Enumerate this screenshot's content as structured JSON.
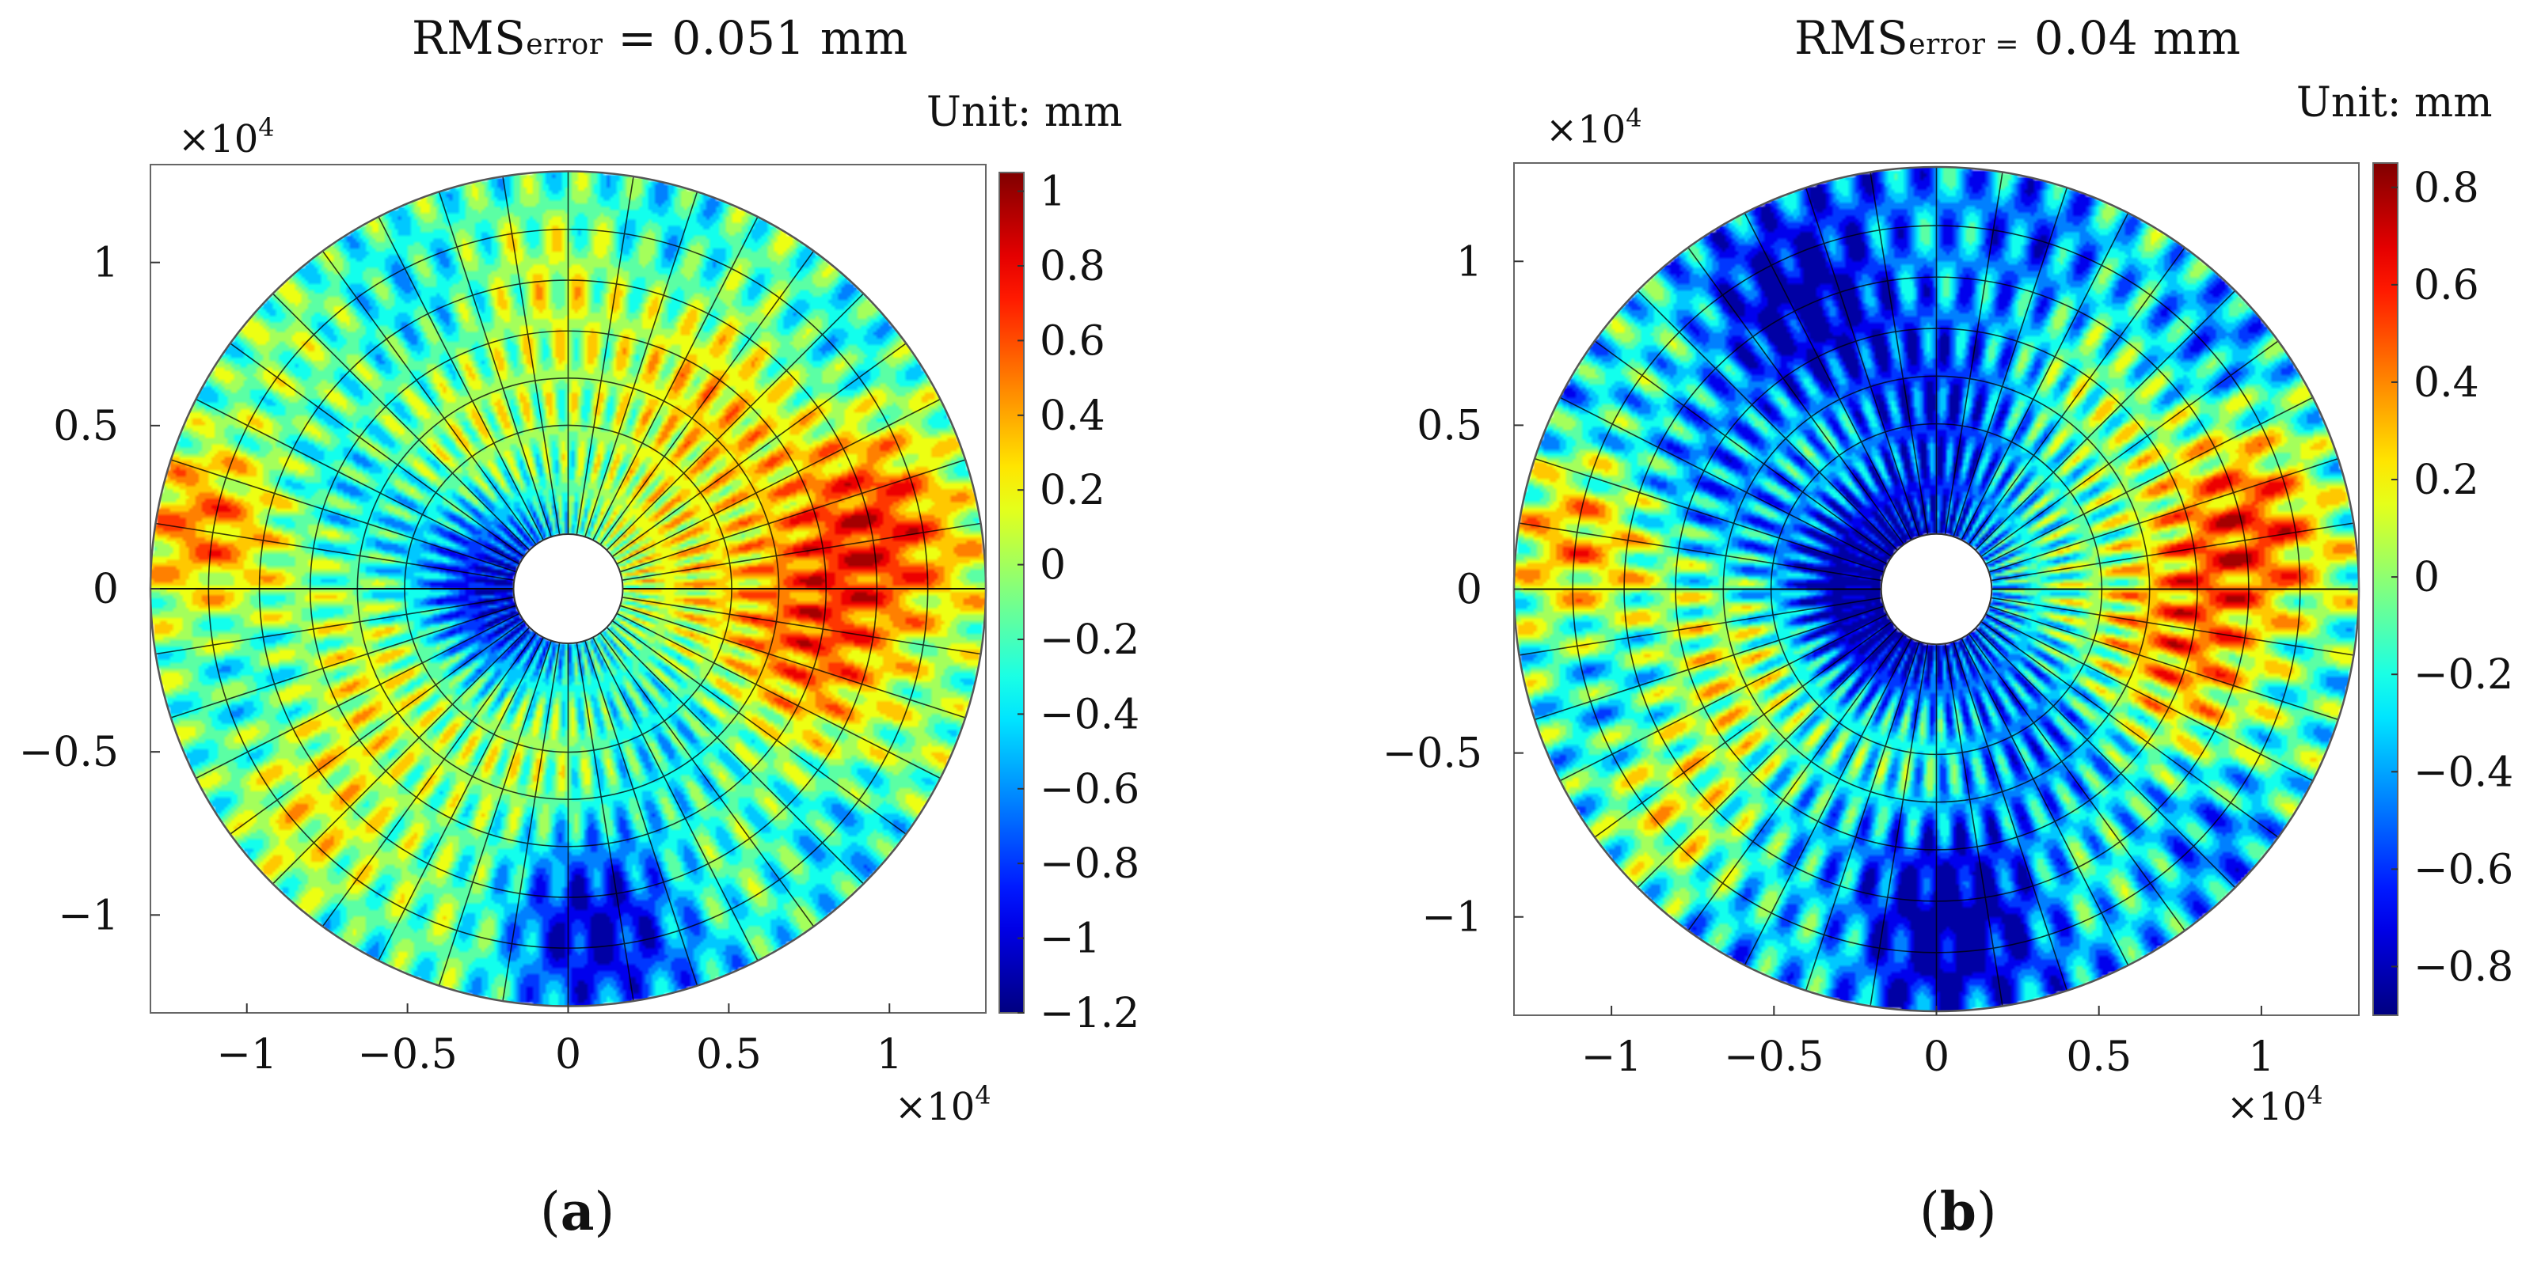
{
  "chart_data": [
    {
      "type": "heatmap",
      "panel_label": "a",
      "title_main": "RMS",
      "title_sub": "error",
      "title_value": "= 0.051 mm",
      "colorbar_label": "Unit: mm",
      "x_scale_label": "×10",
      "y_scale_label": "×10",
      "scale_exponent": "4",
      "xlim": [
        -1.3,
        1.3
      ],
      "ylim": [
        -1.3,
        1.3
      ],
      "x_ticks": [
        -1,
        -0.5,
        0,
        0.5,
        1
      ],
      "x_tick_labels": [
        "−1",
        "−0.5",
        "0",
        "0.5",
        "1"
      ],
      "y_ticks": [
        1,
        0.5,
        0,
        -0.5,
        -1
      ],
      "y_tick_labels": [
        "1",
        "0.5",
        "0",
        "−0.5",
        "−1"
      ],
      "outer_radius": 1.3,
      "inner_radius": 0.17,
      "colorbar_range": [
        -1.2,
        1.05
      ],
      "colorbar_ticks": [
        1,
        0.8,
        0.6,
        0.4,
        0.2,
        0,
        -0.2,
        -0.4,
        -0.6,
        -0.8,
        -1,
        -1.2
      ],
      "colorbar_tick_labels": [
        "1",
        "0.8",
        "0.6",
        "0.4",
        "0.2",
        "0",
        "−0.2",
        "−0.4",
        "−0.6",
        "−0.8",
        "−1",
        "−1.2"
      ],
      "field": {
        "base": -0.25,
        "features": [
          {
            "x": 0.85,
            "y": 0.05,
            "amp": 0.95,
            "sigma": 0.33
          },
          {
            "x": -0.2,
            "y": 0.02,
            "amp": -0.75,
            "sigma": 0.22
          },
          {
            "x": 0.1,
            "y": -1.1,
            "amp": -0.65,
            "sigma": 0.25
          },
          {
            "x": -1.15,
            "y": 0.2,
            "amp": 0.55,
            "sigma": 0.25
          },
          {
            "x": 0.1,
            "y": 0.55,
            "amp": 0.4,
            "sigma": 0.35
          },
          {
            "x": -0.55,
            "y": -0.55,
            "amp": 0.45,
            "sigma": 0.3
          }
        ],
        "ripple_amplitude": 0.35,
        "ring_spokes": 48
      }
    },
    {
      "type": "heatmap",
      "panel_label": "b",
      "title_main": "RMS",
      "title_sub": "error =",
      "title_value": "0.04 mm",
      "colorbar_label": "Unit: mm",
      "x_scale_label": "×10",
      "y_scale_label": "×10",
      "scale_exponent": "4",
      "xlim": [
        -1.3,
        1.3
      ],
      "ylim": [
        -1.3,
        1.3
      ],
      "x_ticks": [
        -1,
        -0.5,
        0,
        0.5,
        1
      ],
      "x_tick_labels": [
        "−1",
        "−0.5",
        "0",
        "0.5",
        "1"
      ],
      "y_ticks": [
        1,
        0.5,
        0,
        -0.5,
        -1
      ],
      "y_tick_labels": [
        "1",
        "0.5",
        "0",
        "−0.5",
        "−1"
      ],
      "outer_radius": 1.3,
      "inner_radius": 0.17,
      "colorbar_range": [
        -0.9,
        0.85
      ],
      "colorbar_ticks": [
        0.8,
        0.6,
        0.4,
        0.2,
        0,
        -0.2,
        -0.4,
        -0.6,
        -0.8
      ],
      "colorbar_tick_labels": [
        "0.8",
        "0.6",
        "0.4",
        "0.2",
        "0",
        "−0.2",
        "−0.4",
        "−0.6",
        "−0.8"
      ],
      "field": {
        "base": -0.3,
        "features": [
          {
            "x": 0.85,
            "y": 0.05,
            "amp": 0.8,
            "sigma": 0.33
          },
          {
            "x": -0.1,
            "y": 0.0,
            "amp": -0.7,
            "sigma": 0.25
          },
          {
            "x": 0.0,
            "y": -1.05,
            "amp": -0.5,
            "sigma": 0.28
          },
          {
            "x": -0.3,
            "y": 0.9,
            "amp": -0.45,
            "sigma": 0.3
          },
          {
            "x": -1.1,
            "y": 0.1,
            "amp": 0.45,
            "sigma": 0.25
          },
          {
            "x": -0.6,
            "y": -0.5,
            "amp": 0.4,
            "sigma": 0.3
          }
        ],
        "ripple_amplitude": 0.35,
        "ring_spokes": 48
      }
    }
  ]
}
